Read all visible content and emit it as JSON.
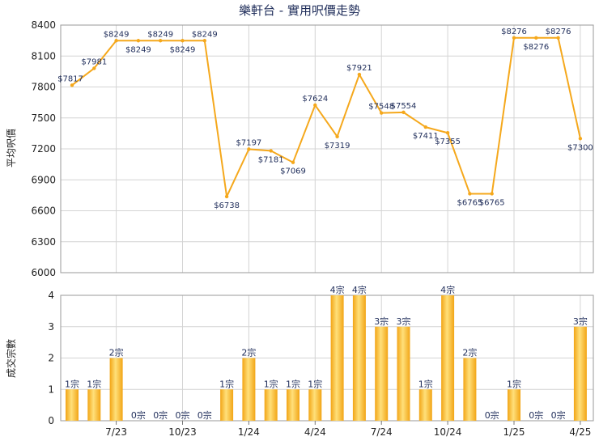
{
  "chart_data": [
    {
      "type": "line",
      "title": "樂軒台 - 實用呎價走勢",
      "ylabel": "平均呎價",
      "ylim": [
        6000,
        8400
      ],
      "yticks": [
        "8400",
        "8100",
        "7800",
        "7500",
        "7200",
        "6900",
        "6600",
        "6300",
        "6000"
      ],
      "x": [
        "2023-05",
        "2023-06",
        "2023-07",
        "2023-08",
        "2023-09",
        "2023-10",
        "2023-11",
        "2023-12",
        "2024-01",
        "2024-02",
        "2024-03",
        "2024-04",
        "2024-05",
        "2024-06",
        "2024-07",
        "2024-08",
        "2024-09",
        "2024-10",
        "2024-11",
        "2024-12",
        "2025-01",
        "2025-02",
        "2025-03",
        "2025-04"
      ],
      "values": [
        7817,
        7981,
        8249,
        8249,
        8249,
        8249,
        8249,
        6738,
        7197,
        7181,
        7069,
        7624,
        7319,
        7921,
        7548,
        7554,
        7411,
        7355,
        6765,
        6765,
        8276,
        8276,
        8276,
        7300
      ],
      "labels": [
        "$7817",
        "$7981",
        "$8249",
        "$8249",
        "$8249",
        "$8249",
        "$8249",
        "$6738",
        "$7197",
        "$7181",
        "$7069",
        "$7624",
        "$7319",
        "$7921",
        "$7548",
        "$7554",
        "$7411",
        "$7355",
        "$6765",
        "$6765",
        "$8276",
        "$8276",
        "$8276",
        "$7300"
      ],
      "color": "#f5a81c",
      "grid": true
    },
    {
      "type": "bar",
      "ylabel": "成交宗數",
      "ylim": [
        0,
        4
      ],
      "yticks": [
        "4",
        "3",
        "2",
        "1",
        "0"
      ],
      "x": [
        "2023-05",
        "2023-06",
        "2023-07",
        "2023-08",
        "2023-09",
        "2023-10",
        "2023-11",
        "2023-12",
        "2024-01",
        "2024-02",
        "2024-03",
        "2024-04",
        "2024-05",
        "2024-06",
        "2024-07",
        "2024-08",
        "2024-09",
        "2024-10",
        "2024-11",
        "2024-12",
        "2025-01",
        "2025-02",
        "2025-03",
        "2025-04"
      ],
      "values": [
        1,
        1,
        2,
        0,
        0,
        0,
        0,
        1,
        2,
        1,
        1,
        1,
        4,
        4,
        3,
        3,
        1,
        4,
        2,
        0,
        1,
        0,
        0,
        3
      ],
      "labels": [
        "1宗",
        "1宗",
        "2宗",
        "0宗",
        "0宗",
        "0宗",
        "0宗",
        "1宗",
        "2宗",
        "1宗",
        "1宗",
        "1宗",
        "4宗",
        "4宗",
        "3宗",
        "3宗",
        "1宗",
        "4宗",
        "2宗",
        "0宗",
        "1宗",
        "0宗",
        "0宗",
        "3宗"
      ],
      "xtick_labels": [
        "7/23",
        "10/23",
        "1/24",
        "4/24",
        "7/24",
        "10/24",
        "1/25",
        "4/25"
      ],
      "xtick_index": [
        2,
        5,
        8,
        11,
        14,
        17,
        20,
        23
      ],
      "color": "#f5a81c",
      "grid": true
    }
  ]
}
